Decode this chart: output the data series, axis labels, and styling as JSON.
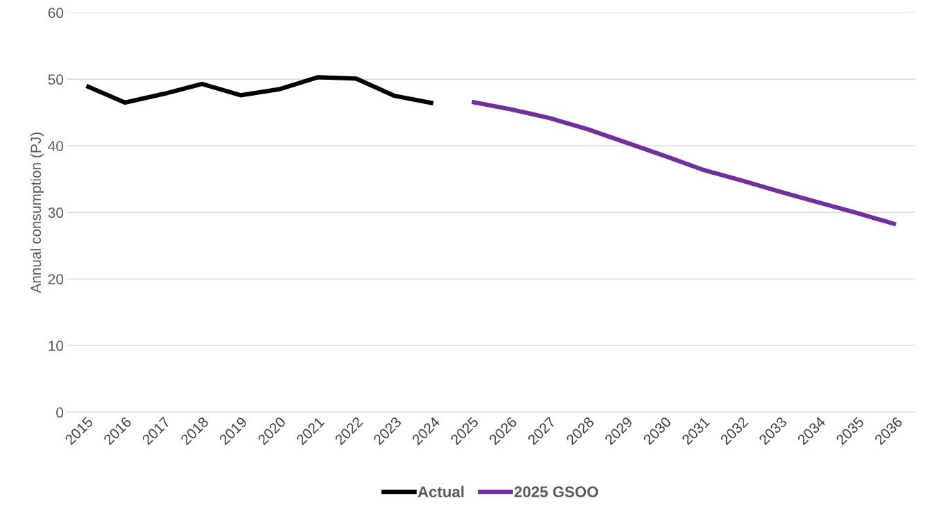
{
  "chart_data": {
    "type": "line",
    "ylabel": "Annual consumption (PJ)",
    "categories": [
      "2015",
      "2016",
      "2017",
      "2018",
      "2019",
      "2020",
      "2021",
      "2022",
      "2023",
      "2024",
      "2025",
      "2026",
      "2027",
      "2028",
      "2029",
      "2030",
      "2031",
      "2032",
      "2033",
      "2034",
      "2035",
      "2036"
    ],
    "series": [
      {
        "name": "Actual",
        "color": "#000000",
        "values": [
          49.0,
          46.5,
          47.8,
          49.3,
          47.6,
          48.5,
          50.3,
          50.1,
          47.5,
          46.4,
          null,
          null,
          null,
          null,
          null,
          null,
          null,
          null,
          null,
          null,
          null,
          null
        ]
      },
      {
        "name": "2025 GSOO",
        "color": "#7030a0",
        "values": [
          null,
          null,
          null,
          null,
          null,
          null,
          null,
          null,
          null,
          null,
          46.6,
          45.5,
          44.2,
          42.5,
          40.5,
          38.5,
          36.4,
          34.8,
          33.1,
          31.5,
          29.9,
          28.2
        ]
      }
    ],
    "ylim": [
      0,
      60
    ],
    "yticks": [
      0,
      10,
      20,
      30,
      40,
      50,
      60
    ],
    "grid": "y",
    "legend": "bottom",
    "marker": "none",
    "line_style": "solid"
  }
}
